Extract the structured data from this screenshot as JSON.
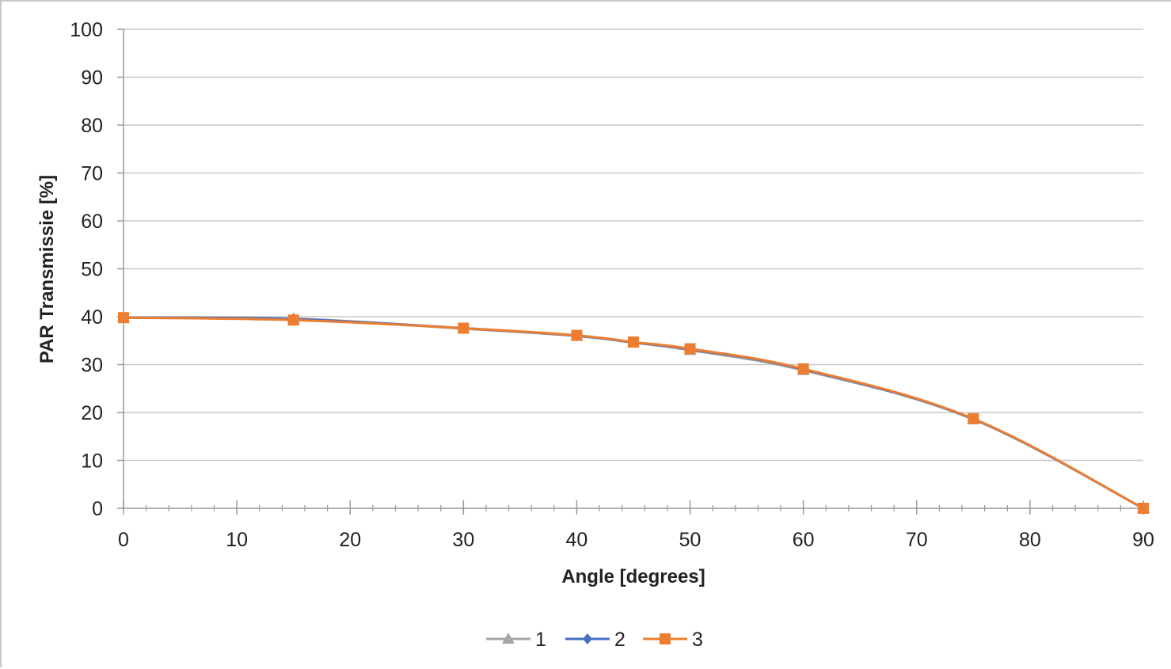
{
  "chart_data": {
    "type": "line",
    "title": "",
    "xlabel": "Angle [degrees]",
    "ylabel": "PAR Transmissie  [%]",
    "xlim": [
      0,
      90
    ],
    "ylim": [
      0,
      100
    ],
    "x_ticks": [
      0,
      10,
      20,
      30,
      40,
      50,
      60,
      70,
      80,
      90
    ],
    "y_ticks": [
      0,
      10,
      20,
      30,
      40,
      50,
      60,
      70,
      80,
      90,
      100
    ],
    "x_tick_labels": [
      "0",
      "10",
      "20",
      "30",
      "40",
      "50",
      "60",
      "70",
      "80",
      "90"
    ],
    "y_tick_labels": [
      "0",
      "10",
      "20",
      "30",
      "40",
      "50",
      "60",
      "70",
      "80",
      "90",
      "100"
    ],
    "grid": "horizontal",
    "legend_position": "bottom",
    "x": [
      0,
      15,
      30,
      40,
      45,
      50,
      60,
      75,
      90
    ],
    "series": [
      {
        "name": "1",
        "marker": "triangle",
        "color": "#a5a5a5",
        "values": [
          39.8,
          39.6,
          37.5,
          36.0,
          34.6,
          33.0,
          28.8,
          18.6,
          0
        ]
      },
      {
        "name": "2",
        "marker": "diamond",
        "color": "#4472c4",
        "values": [
          39.8,
          39.5,
          37.6,
          36.0,
          34.6,
          33.2,
          29.0,
          18.6,
          0
        ]
      },
      {
        "name": "3",
        "marker": "square",
        "color": "#ed7d31",
        "values": [
          39.8,
          39.3,
          37.6,
          36.1,
          34.7,
          33.3,
          29.1,
          18.7,
          0
        ]
      }
    ]
  }
}
